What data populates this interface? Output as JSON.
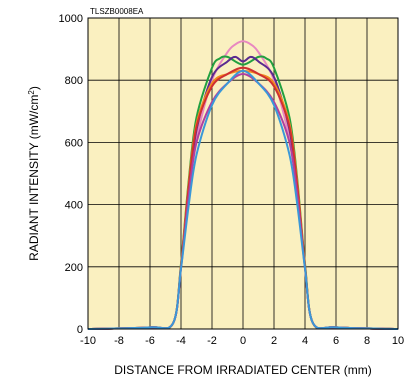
{
  "chart_data": {
    "type": "line",
    "code": "TLSZB0008EA",
    "xlabel": "DISTANCE FROM IRRADIATED CENTER (mm)",
    "ylabel_main": "RADIANT INTENSITY (mW/cm",
    "ylabel_sup": "2",
    "ylabel_tail": ")",
    "xlim": [
      -10,
      10
    ],
    "ylim": [
      0,
      1000
    ],
    "x_ticks": [
      -10,
      -8,
      -6,
      -4,
      -2,
      0,
      2,
      4,
      6,
      8,
      10
    ],
    "y_ticks": [
      0,
      200,
      400,
      600,
      800,
      1000
    ],
    "x_tick_labels": [
      "-10",
      "-8",
      "-6",
      "-4",
      "-2",
      "0",
      "2",
      "4",
      "6",
      "8",
      "10"
    ],
    "y_tick_labels": [
      "0",
      "200",
      "400",
      "600",
      "800",
      "1000"
    ],
    "grid": true,
    "background_color": "#faf0c0",
    "series": [
      {
        "color": "#e888c0",
        "x": [
          -10,
          -6,
          -4.5,
          -4,
          -3.5,
          -3,
          -2,
          -1,
          -0.5,
          0,
          0.5,
          1,
          2,
          3,
          3.5,
          4,
          4.5,
          6,
          10
        ],
        "y": [
          0,
          5,
          20,
          200,
          440,
          610,
          800,
          890,
          915,
          925,
          915,
          890,
          800,
          610,
          440,
          200,
          20,
          5,
          0
        ]
      },
      {
        "color": "#22a040",
        "x": [
          -10,
          -6,
          -4.5,
          -4,
          -3.5,
          -3,
          -2,
          -1.5,
          -1,
          0,
          1,
          1.5,
          2,
          3,
          3.5,
          4,
          4.5,
          6,
          10
        ],
        "y": [
          0,
          5,
          20,
          210,
          480,
          680,
          840,
          870,
          875,
          850,
          875,
          870,
          840,
          680,
          480,
          210,
          20,
          5,
          0
        ]
      },
      {
        "color": "#5a2a90",
        "x": [
          -10,
          -6,
          -4.5,
          -4,
          -3.5,
          -3,
          -2,
          -1,
          -0.5,
          0,
          0.5,
          1,
          2,
          3,
          3.5,
          4,
          4.5,
          6,
          10
        ],
        "y": [
          0,
          5,
          20,
          200,
          450,
          640,
          810,
          860,
          875,
          860,
          875,
          860,
          810,
          640,
          450,
          200,
          20,
          5,
          0
        ]
      },
      {
        "color": "#f08a20",
        "x": [
          -10,
          -6,
          -4.5,
          -4,
          -3.5,
          -3,
          -2,
          -1,
          0,
          1,
          2,
          3,
          3.5,
          4,
          4.5,
          6,
          10
        ],
        "y": [
          0,
          5,
          20,
          205,
          470,
          660,
          790,
          820,
          830,
          820,
          790,
          660,
          470,
          205,
          20,
          5,
          0
        ]
      },
      {
        "color": "#d03030",
        "x": [
          -10,
          -6,
          -4.5,
          -4,
          -3.5,
          -3,
          -2,
          -1,
          0,
          1,
          2,
          3,
          3.5,
          4,
          4.5,
          6,
          10
        ],
        "y": [
          0,
          5,
          20,
          200,
          460,
          650,
          780,
          820,
          840,
          820,
          780,
          650,
          460,
          200,
          20,
          5,
          0
        ]
      },
      {
        "color": "#b040a0",
        "x": [
          -10,
          -6,
          -4.5,
          -4,
          -3.5,
          -3,
          -2,
          -1,
          0,
          1,
          2,
          3,
          3.5,
          4,
          4.5,
          6,
          10
        ],
        "y": [
          0,
          5,
          20,
          195,
          430,
          600,
          730,
          790,
          820,
          790,
          730,
          600,
          430,
          195,
          20,
          5,
          0
        ]
      },
      {
        "color": "#3a98d8",
        "x": [
          -10,
          -6,
          -4.5,
          -4,
          -3.5,
          -3,
          -2,
          -1,
          0,
          1,
          2,
          3,
          3.5,
          4,
          4.5,
          6,
          10
        ],
        "y": [
          0,
          5,
          20,
          195,
          400,
          560,
          720,
          790,
          830,
          790,
          720,
          560,
          400,
          195,
          20,
          5,
          0
        ]
      }
    ]
  }
}
